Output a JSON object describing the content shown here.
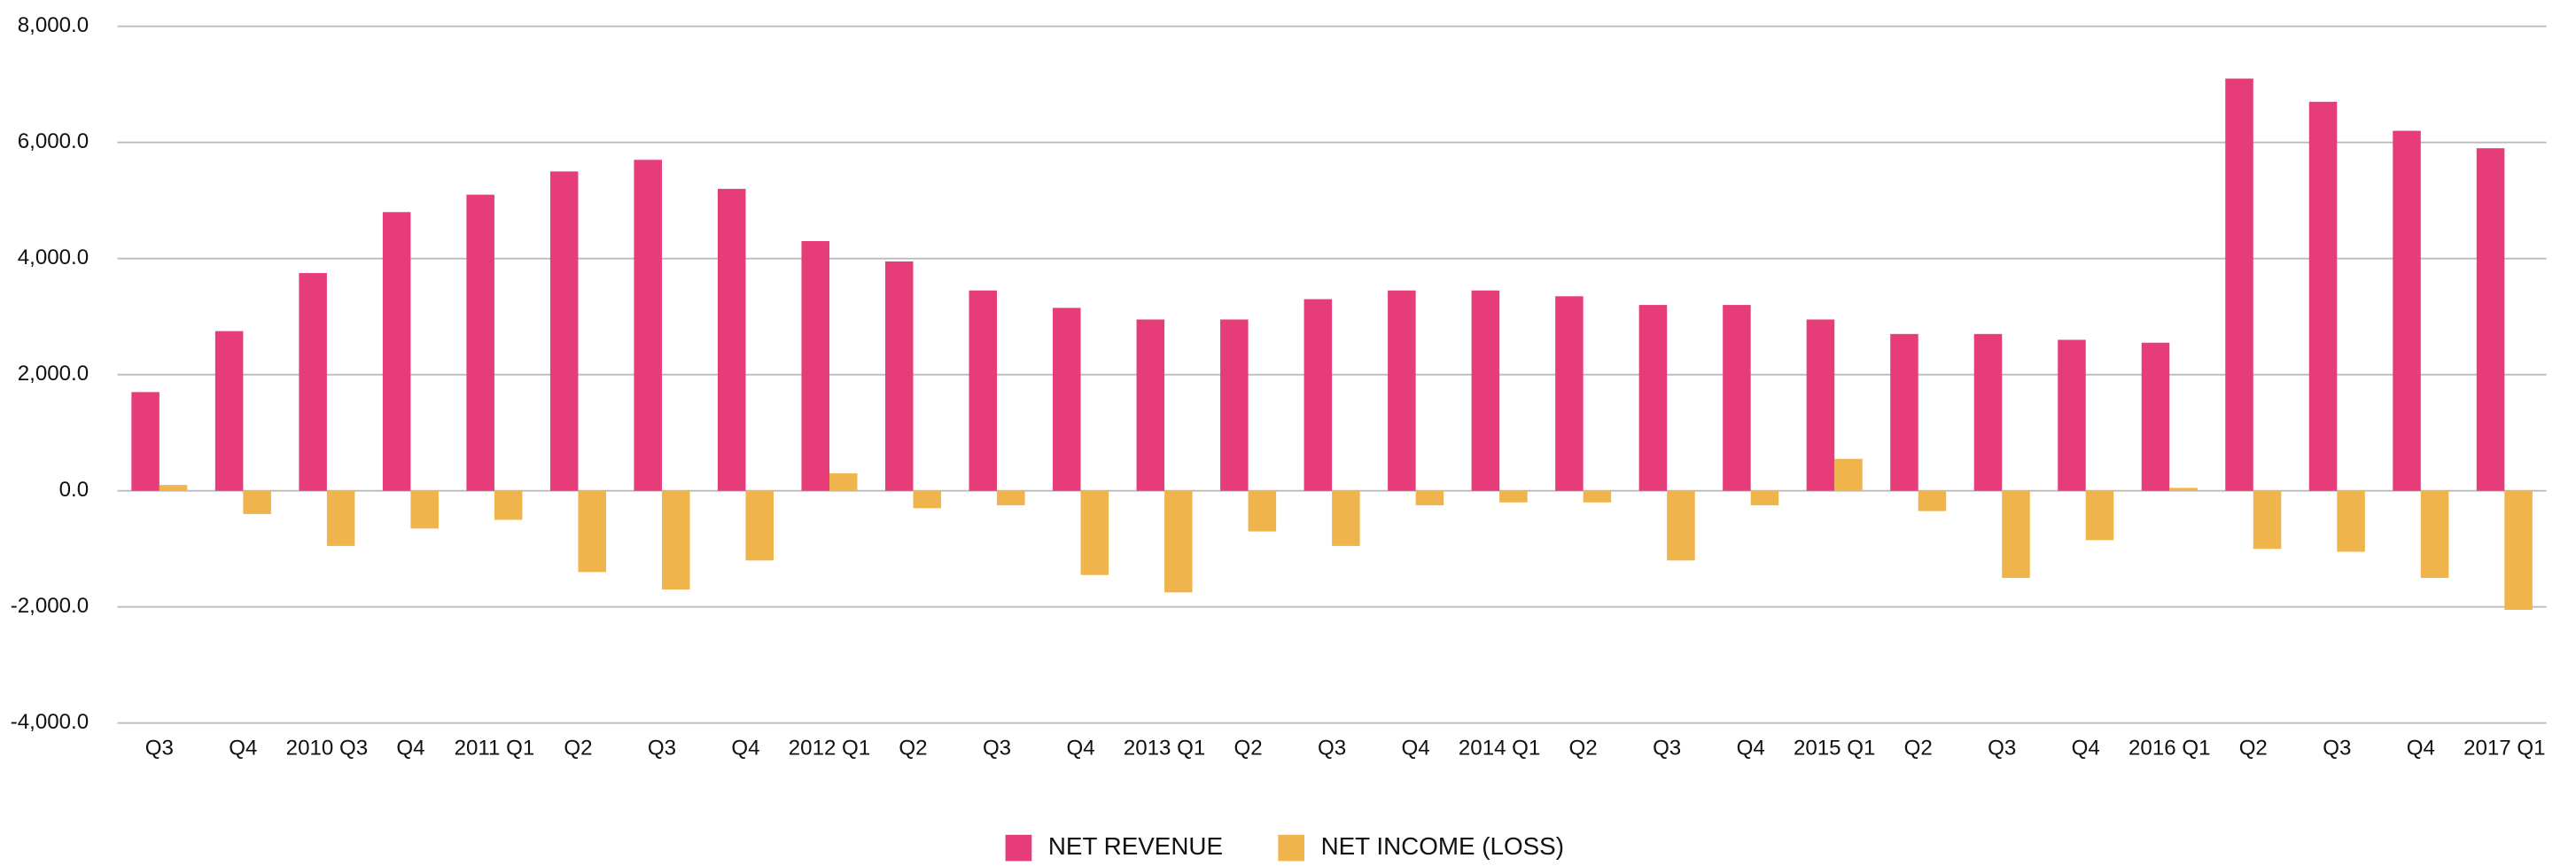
{
  "chart_data": {
    "type": "bar",
    "categories": [
      "Q3",
      "Q4",
      "2010 Q3",
      "Q4",
      "2011 Q1",
      "Q2",
      "Q3",
      "Q4",
      "2012 Q1",
      "Q2",
      "Q3",
      "Q4",
      "2013 Q1",
      "Q2",
      "Q3",
      "Q4",
      "2014 Q1",
      "Q2",
      "Q3",
      "Q4",
      "2015 Q1",
      "Q2",
      "Q3",
      "Q4",
      "2016 Q1",
      "Q2",
      "Q3",
      "Q4",
      "2017 Q1"
    ],
    "series": [
      {
        "name": "NET REVENUE",
        "color": "#e63c7a",
        "values": [
          1700,
          2750,
          3750,
          4800,
          5100,
          5500,
          5700,
          5200,
          4300,
          3950,
          3450,
          3150,
          2950,
          2950,
          3300,
          3450,
          3450,
          3350,
          3200,
          3200,
          2950,
          2700,
          2700,
          2600,
          2550,
          7100,
          6700,
          6200,
          5900
        ]
      },
      {
        "name": "NET INCOME (LOSS)",
        "color": "#f0b44c",
        "values": [
          100,
          -400,
          -950,
          -650,
          -500,
          -1400,
          -1700,
          -1200,
          300,
          -300,
          -250,
          -1450,
          -1750,
          -700,
          -950,
          -250,
          -200,
          -200,
          -1200,
          -250,
          550,
          -350,
          -1500,
          -850,
          50,
          -1000,
          -1050,
          -1500,
          -2050
        ]
      }
    ],
    "ylim": [
      -4000,
      8000
    ],
    "yticks": [
      {
        "value": -4000,
        "label": "-4,000.0"
      },
      {
        "value": -2000,
        "label": "-2,000.0"
      },
      {
        "value": 0,
        "label": "0.0"
      },
      {
        "value": 2000,
        "label": "2,000.0"
      },
      {
        "value": 4000,
        "label": "4,000.0"
      },
      {
        "value": 6000,
        "label": "6,000.0"
      },
      {
        "value": 8000,
        "label": "8,000.0"
      }
    ],
    "grid": true,
    "legend": "bottom"
  }
}
